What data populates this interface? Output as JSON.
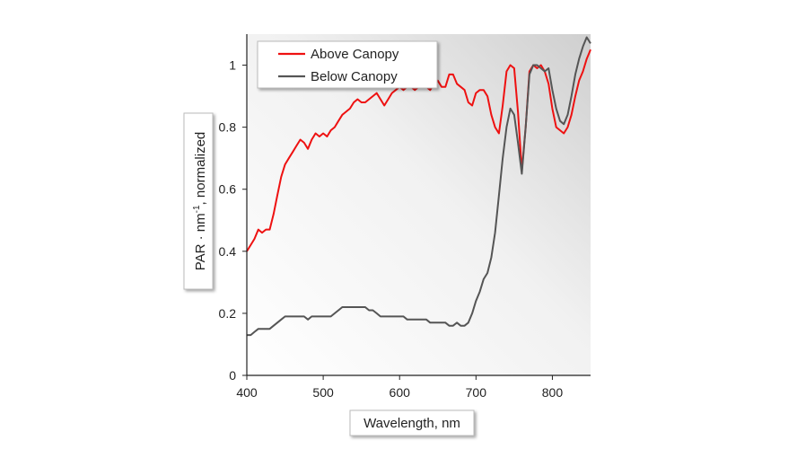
{
  "chart_data": {
    "type": "line",
    "title": "",
    "xlabel": "Wavelength, nm",
    "ylabel_parts": [
      "PAR · nm",
      "-1",
      ", normalized"
    ],
    "xlim": [
      400,
      850
    ],
    "ylim": [
      0,
      1.1
    ],
    "xticks": [
      400,
      500,
      600,
      700,
      800
    ],
    "yticks": [
      0,
      0.2,
      0.4,
      0.6,
      0.8,
      1
    ],
    "ytick_labels": [
      "0",
      "0.2",
      "0.4",
      "0.6",
      "0.8",
      "1"
    ],
    "grid": false,
    "legend_position": "top-left",
    "series": [
      {
        "name": "Above Canopy",
        "color": "#ee1111",
        "points": [
          [
            400,
            0.4
          ],
          [
            405,
            0.42
          ],
          [
            410,
            0.44
          ],
          [
            415,
            0.47
          ],
          [
            420,
            0.46
          ],
          [
            425,
            0.47
          ],
          [
            430,
            0.47
          ],
          [
            435,
            0.52
          ],
          [
            440,
            0.58
          ],
          [
            445,
            0.64
          ],
          [
            450,
            0.68
          ],
          [
            455,
            0.7
          ],
          [
            460,
            0.72
          ],
          [
            465,
            0.74
          ],
          [
            470,
            0.76
          ],
          [
            475,
            0.75
          ],
          [
            480,
            0.73
          ],
          [
            485,
            0.76
          ],
          [
            490,
            0.78
          ],
          [
            495,
            0.77
          ],
          [
            500,
            0.78
          ],
          [
            505,
            0.77
          ],
          [
            510,
            0.79
          ],
          [
            515,
            0.8
          ],
          [
            520,
            0.82
          ],
          [
            525,
            0.84
          ],
          [
            530,
            0.85
          ],
          [
            535,
            0.86
          ],
          [
            540,
            0.88
          ],
          [
            545,
            0.89
          ],
          [
            550,
            0.88
          ],
          [
            555,
            0.88
          ],
          [
            560,
            0.89
          ],
          [
            565,
            0.9
          ],
          [
            570,
            0.91
          ],
          [
            575,
            0.89
          ],
          [
            580,
            0.87
          ],
          [
            585,
            0.89
          ],
          [
            590,
            0.91
          ],
          [
            595,
            0.92
          ],
          [
            600,
            0.93
          ],
          [
            605,
            0.92
          ],
          [
            610,
            0.93
          ],
          [
            615,
            0.93
          ],
          [
            620,
            0.92
          ],
          [
            625,
            0.93
          ],
          [
            630,
            0.94
          ],
          [
            635,
            0.93
          ],
          [
            640,
            0.92
          ],
          [
            645,
            0.94
          ],
          [
            650,
            0.95
          ],
          [
            655,
            0.93
          ],
          [
            660,
            0.93
          ],
          [
            665,
            0.97
          ],
          [
            670,
            0.97
          ],
          [
            675,
            0.94
          ],
          [
            680,
            0.93
          ],
          [
            685,
            0.92
          ],
          [
            690,
            0.88
          ],
          [
            695,
            0.87
          ],
          [
            700,
            0.91
          ],
          [
            705,
            0.92
          ],
          [
            710,
            0.92
          ],
          [
            715,
            0.9
          ],
          [
            720,
            0.84
          ],
          [
            725,
            0.8
          ],
          [
            730,
            0.78
          ],
          [
            735,
            0.87
          ],
          [
            740,
            0.98
          ],
          [
            745,
            1.0
          ],
          [
            750,
            0.99
          ],
          [
            755,
            0.85
          ],
          [
            760,
            0.66
          ],
          [
            765,
            0.8
          ],
          [
            770,
            0.98
          ],
          [
            775,
            1.0
          ],
          [
            780,
            0.99
          ],
          [
            785,
            1.0
          ],
          [
            790,
            0.98
          ],
          [
            795,
            0.94
          ],
          [
            800,
            0.86
          ],
          [
            805,
            0.8
          ],
          [
            810,
            0.79
          ],
          [
            815,
            0.78
          ],
          [
            820,
            0.8
          ],
          [
            825,
            0.84
          ],
          [
            830,
            0.9
          ],
          [
            835,
            0.95
          ],
          [
            840,
            0.98
          ],
          [
            845,
            1.02
          ],
          [
            850,
            1.05
          ]
        ]
      },
      {
        "name": "Below Canopy",
        "color": "#555555",
        "points": [
          [
            400,
            0.13
          ],
          [
            405,
            0.13
          ],
          [
            410,
            0.14
          ],
          [
            415,
            0.15
          ],
          [
            420,
            0.15
          ],
          [
            425,
            0.15
          ],
          [
            430,
            0.15
          ],
          [
            435,
            0.16
          ],
          [
            440,
            0.17
          ],
          [
            445,
            0.18
          ],
          [
            450,
            0.19
          ],
          [
            455,
            0.19
          ],
          [
            460,
            0.19
          ],
          [
            465,
            0.19
          ],
          [
            470,
            0.19
          ],
          [
            475,
            0.19
          ],
          [
            480,
            0.18
          ],
          [
            485,
            0.19
          ],
          [
            490,
            0.19
          ],
          [
            495,
            0.19
          ],
          [
            500,
            0.19
          ],
          [
            505,
            0.19
          ],
          [
            510,
            0.19
          ],
          [
            515,
            0.2
          ],
          [
            520,
            0.21
          ],
          [
            525,
            0.22
          ],
          [
            530,
            0.22
          ],
          [
            535,
            0.22
          ],
          [
            540,
            0.22
          ],
          [
            545,
            0.22
          ],
          [
            550,
            0.22
          ],
          [
            555,
            0.22
          ],
          [
            560,
            0.21
          ],
          [
            565,
            0.21
          ],
          [
            570,
            0.2
          ],
          [
            575,
            0.19
          ],
          [
            580,
            0.19
          ],
          [
            585,
            0.19
          ],
          [
            590,
            0.19
          ],
          [
            595,
            0.19
          ],
          [
            600,
            0.19
          ],
          [
            605,
            0.19
          ],
          [
            610,
            0.18
          ],
          [
            615,
            0.18
          ],
          [
            620,
            0.18
          ],
          [
            625,
            0.18
          ],
          [
            630,
            0.18
          ],
          [
            635,
            0.18
          ],
          [
            640,
            0.17
          ],
          [
            645,
            0.17
          ],
          [
            650,
            0.17
          ],
          [
            655,
            0.17
          ],
          [
            660,
            0.17
          ],
          [
            665,
            0.16
          ],
          [
            670,
            0.16
          ],
          [
            675,
            0.17
          ],
          [
            680,
            0.16
          ],
          [
            685,
            0.16
          ],
          [
            690,
            0.17
          ],
          [
            695,
            0.2
          ],
          [
            700,
            0.24
          ],
          [
            705,
            0.27
          ],
          [
            710,
            0.31
          ],
          [
            715,
            0.33
          ],
          [
            720,
            0.38
          ],
          [
            725,
            0.46
          ],
          [
            730,
            0.58
          ],
          [
            735,
            0.7
          ],
          [
            740,
            0.8
          ],
          [
            745,
            0.86
          ],
          [
            750,
            0.84
          ],
          [
            755,
            0.75
          ],
          [
            760,
            0.65
          ],
          [
            765,
            0.8
          ],
          [
            770,
            0.97
          ],
          [
            775,
            1.0
          ],
          [
            780,
            1.0
          ],
          [
            785,
            0.99
          ],
          [
            790,
            0.98
          ],
          [
            795,
            0.99
          ],
          [
            800,
            0.92
          ],
          [
            805,
            0.86
          ],
          [
            810,
            0.82
          ],
          [
            815,
            0.81
          ],
          [
            820,
            0.84
          ],
          [
            825,
            0.9
          ],
          [
            830,
            0.97
          ],
          [
            835,
            1.02
          ],
          [
            840,
            1.06
          ],
          [
            845,
            1.09
          ],
          [
            850,
            1.07
          ]
        ]
      }
    ]
  }
}
